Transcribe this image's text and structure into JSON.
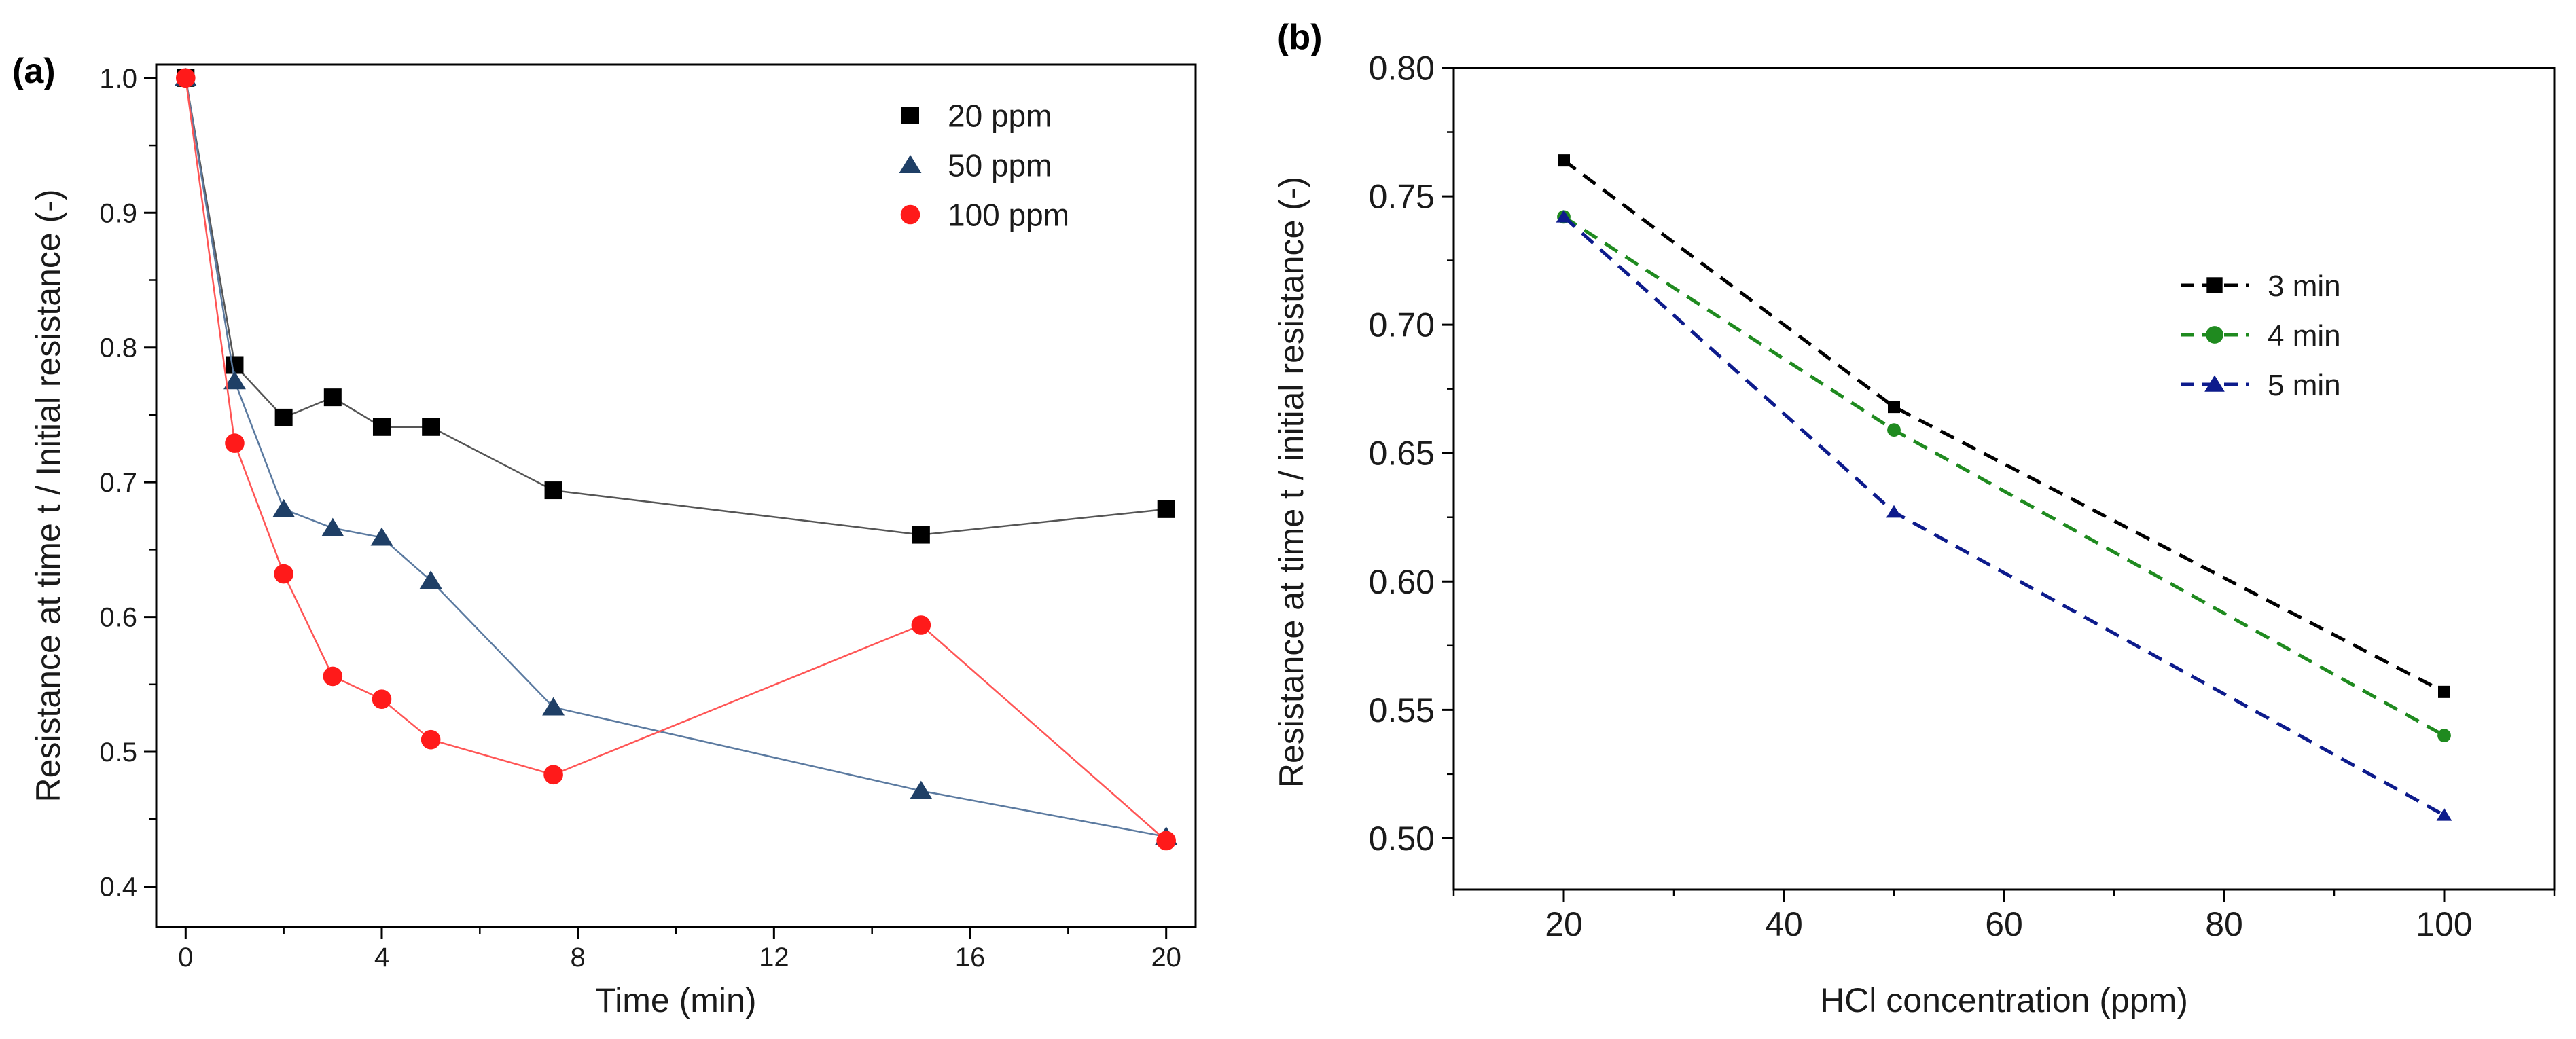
{
  "chart_data": [
    {
      "panel_label": "(a)",
      "type": "line",
      "xlabel": "Time (min)",
      "ylabel": "Resistance at time t / Initial resistance (-)",
      "xlim": [
        -0.6,
        20.6
      ],
      "ylim": [
        0.37,
        1.01
      ],
      "xticks": [
        0,
        4,
        8,
        12,
        16,
        20
      ],
      "yticks": [
        0.4,
        0.5,
        0.6,
        0.7,
        0.8,
        0.9,
        1.0
      ],
      "ytick_labels": [
        "0.4",
        "0.5",
        "0.6",
        "0.7",
        "0.8",
        "0.9",
        "1.0"
      ],
      "grid": false,
      "legend_position": "top-right",
      "series": [
        {
          "name": "20 ppm",
          "marker": "square",
          "color": "#000000",
          "line_color": "#555555",
          "x": [
            0,
            1,
            2,
            3,
            4,
            5,
            7.5,
            15,
            20
          ],
          "y": [
            1.0,
            0.787,
            0.748,
            0.763,
            0.741,
            0.741,
            0.694,
            0.661,
            0.68
          ]
        },
        {
          "name": "50 ppm",
          "marker": "triangle",
          "color": "#1f3f66",
          "line_color": "#5b7aa0",
          "x": [
            0,
            1,
            2,
            3,
            4,
            5,
            7.5,
            15,
            20
          ],
          "y": [
            1.0,
            0.775,
            0.68,
            0.666,
            0.659,
            0.627,
            0.533,
            0.471,
            0.437
          ]
        },
        {
          "name": "100 ppm",
          "marker": "circle",
          "color": "#ff1a1a",
          "line_color": "#ff5555",
          "x": [
            0,
            1,
            2,
            3,
            4,
            5,
            7.5,
            15,
            20
          ],
          "y": [
            1.0,
            0.729,
            0.632,
            0.556,
            0.539,
            0.509,
            0.483,
            0.594,
            0.434
          ]
        }
      ]
    },
    {
      "panel_label": "(b)",
      "type": "line",
      "xlabel": "HCl concentration (ppm)",
      "ylabel": "Resistance at time t / initial resistance (-)",
      "xlim": [
        10,
        110
      ],
      "ylim": [
        0.48,
        0.8
      ],
      "xticks": [
        20,
        40,
        60,
        80,
        100
      ],
      "yticks": [
        0.5,
        0.55,
        0.6,
        0.65,
        0.7,
        0.75,
        0.8
      ],
      "ytick_labels": [
        "0.50",
        "0.55",
        "0.60",
        "0.65",
        "0.70",
        "0.75",
        "0.80"
      ],
      "grid": false,
      "legend_position": "upper-right",
      "series": [
        {
          "name": "3 min",
          "marker": "square",
          "color": "#000000",
          "line_color": "#000000",
          "x": [
            20,
            50,
            100
          ],
          "y": [
            0.764,
            0.668,
            0.557
          ]
        },
        {
          "name": "4 min",
          "marker": "circle",
          "color": "#1f8a1f",
          "line_color": "#1f8a1f",
          "x": [
            20,
            50,
            100
          ],
          "y": [
            0.742,
            0.659,
            0.54
          ]
        },
        {
          "name": "5 min",
          "marker": "triangle",
          "color": "#0d1b8c",
          "line_color": "#0d1b8c",
          "x": [
            20,
            50,
            100
          ],
          "y": [
            0.742,
            0.627,
            0.509
          ]
        }
      ]
    }
  ]
}
